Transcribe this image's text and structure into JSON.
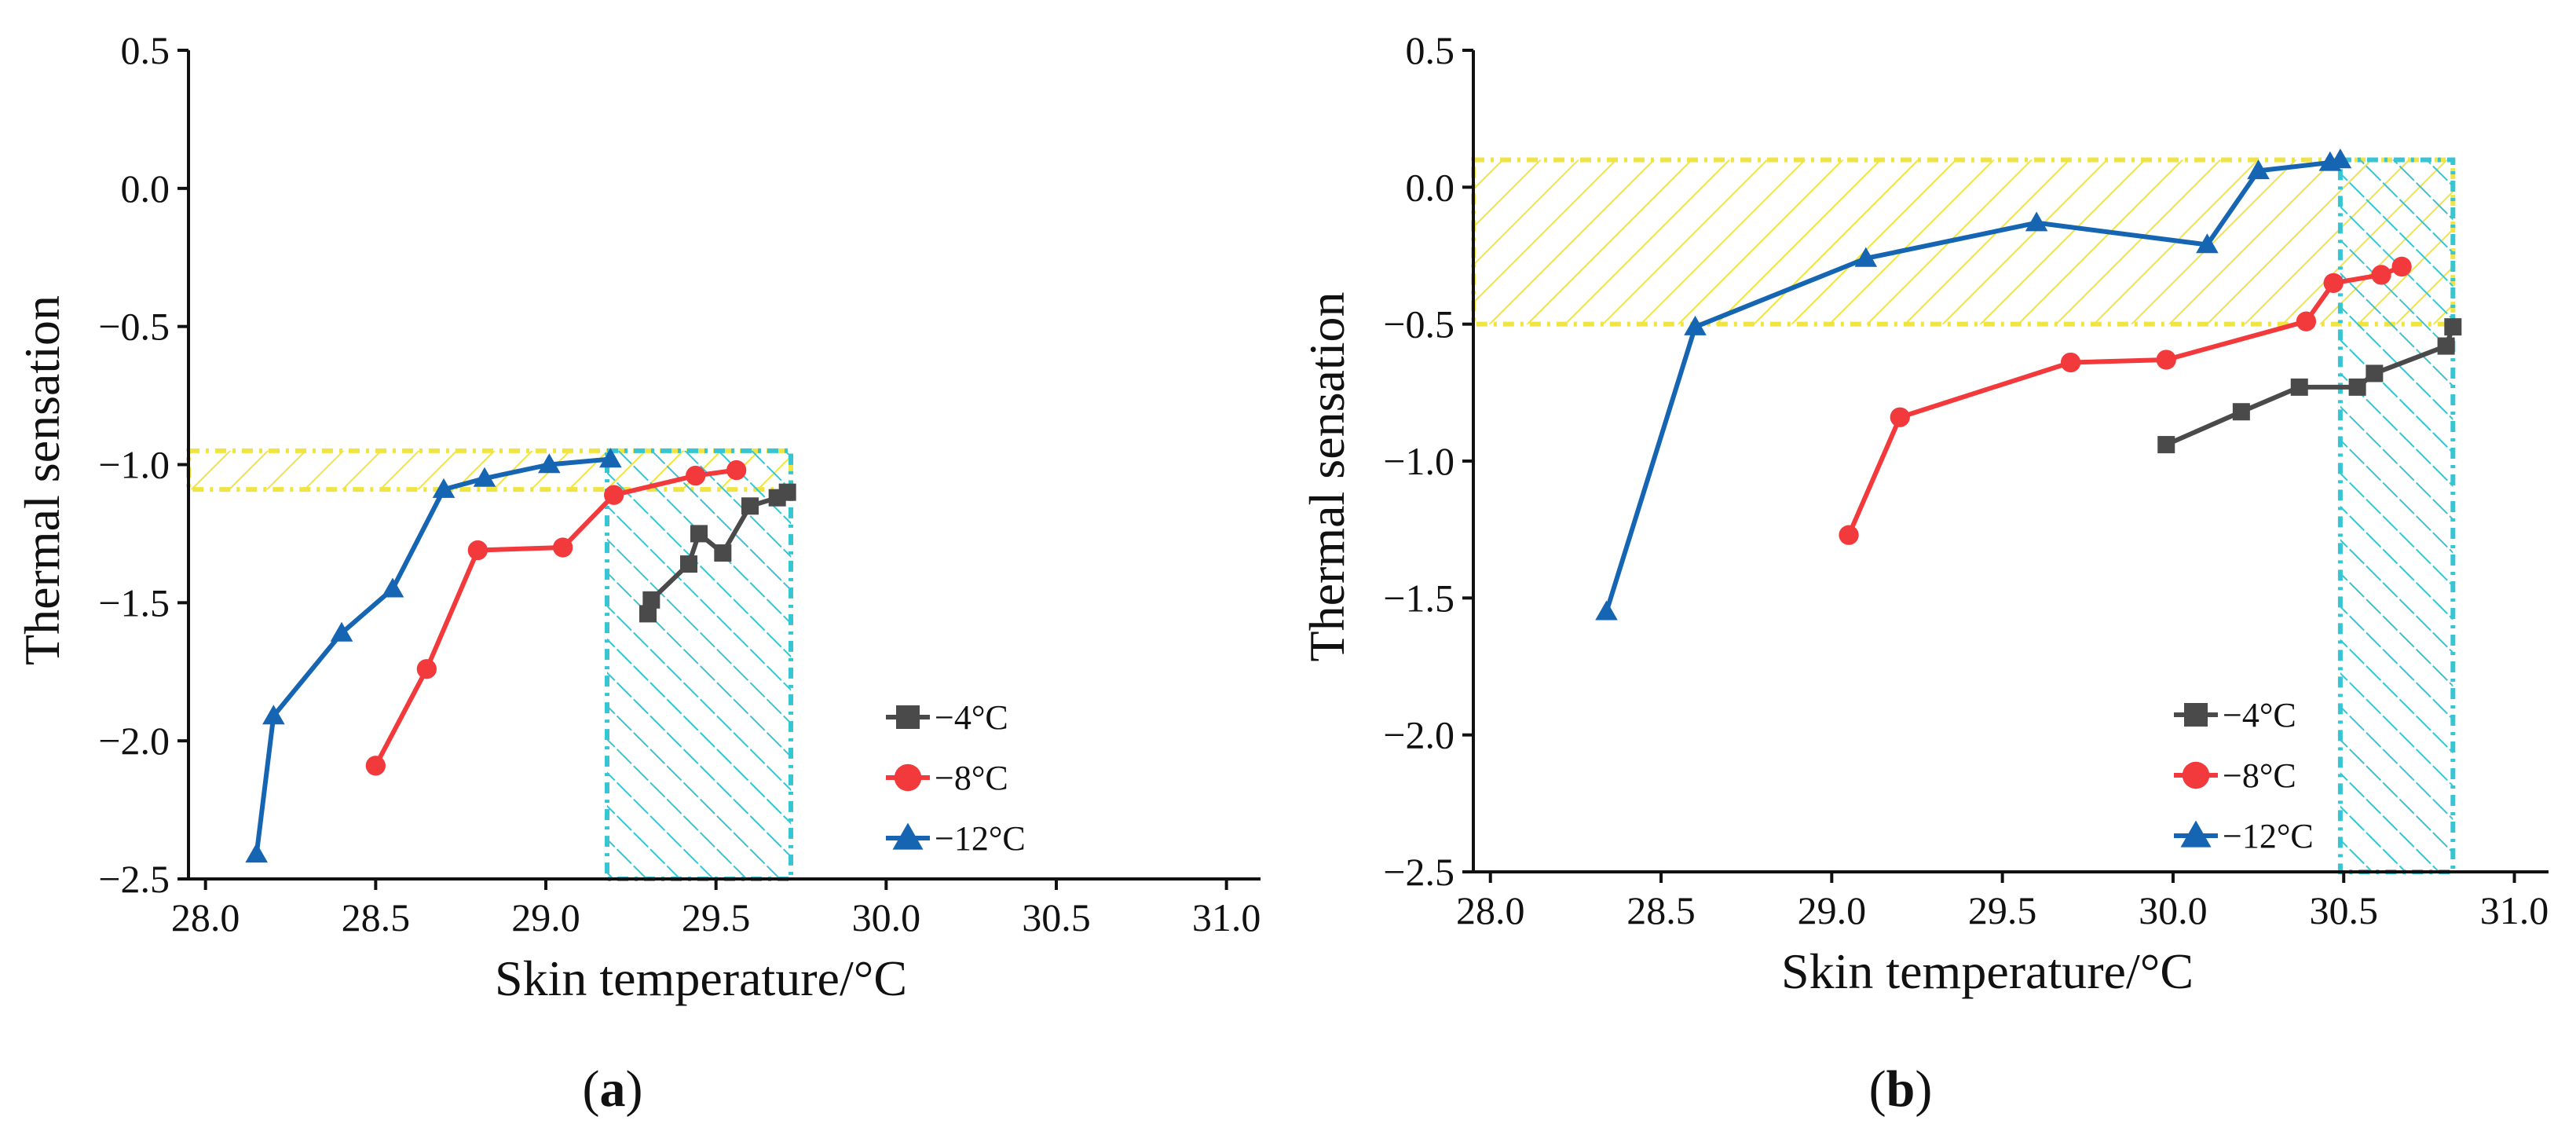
{
  "figure": {
    "labels": {
      "a": "a",
      "b": "b"
    }
  },
  "colors": {
    "series_-4": "#4a4a4a",
    "series_-8": "#f2393b",
    "series_-12": "#1565b3",
    "yellow_hatch": "#f0e442",
    "cyan_hatch": "#36c5d3"
  },
  "chart_data": [
    {
      "id": "a",
      "type": "line",
      "xlabel": "Skin temperature/°C",
      "ylabel": "Thermal sensation",
      "xlim": [
        27.95,
        31.1
      ],
      "ylim": [
        -2.5,
        0.5
      ],
      "xticks": [
        "28.0",
        "28.5",
        "29.0",
        "29.5",
        "30.0",
        "30.5",
        "31.0"
      ],
      "yticks": [
        "0.5",
        "0.0",
        "−0.5",
        "−1.0",
        "−1.5",
        "−2.0",
        "−2.5"
      ],
      "legend": "lower-right",
      "series": [
        {
          "name": "−4°C",
          "marker": "square",
          "x": [
            29.3,
            29.31,
            29.42,
            29.45,
            29.52,
            29.6,
            29.68,
            29.71
          ],
          "y": [
            -1.54,
            -1.49,
            -1.36,
            -1.25,
            -1.32,
            -1.15,
            -1.12,
            -1.1
          ]
        },
        {
          "name": "−8°C",
          "marker": "circle",
          "x": [
            28.5,
            28.65,
            28.8,
            29.05,
            29.2,
            29.44,
            29.56
          ],
          "y": [
            -2.09,
            -1.74,
            -1.31,
            -1.3,
            -1.11,
            -1.04,
            -1.02
          ]
        },
        {
          "name": "−12°C",
          "marker": "triangle",
          "x": [
            28.15,
            28.2,
            28.4,
            28.55,
            28.7,
            28.82,
            29.01,
            29.19
          ],
          "y": [
            -2.41,
            -1.91,
            -1.61,
            -1.45,
            -1.09,
            -1.05,
            -1.0,
            -0.98
          ]
        }
      ],
      "shaded_regions": [
        {
          "type": "horizontal-band",
          "style": "yellow",
          "x_range": [
            27.95,
            29.72
          ],
          "y_range": [
            -1.09,
            -0.95
          ]
        },
        {
          "type": "vertical-band",
          "style": "cyan",
          "x_range": [
            29.18,
            29.72
          ],
          "y_range": [
            -2.5,
            -0.95
          ]
        }
      ]
    },
    {
      "id": "b",
      "type": "line",
      "xlabel": "Skin temperature/°C",
      "ylabel": "Thermal sensation",
      "xlim": [
        27.95,
        31.1
      ],
      "ylim": [
        -2.5,
        0.5
      ],
      "xticks": [
        "28.0",
        "28.5",
        "29.0",
        "29.5",
        "30.0",
        "30.5",
        "31.0"
      ],
      "yticks": [
        "0.5",
        "0.0",
        "−0.5",
        "−1.0",
        "−1.5",
        "−2.0",
        "−2.5"
      ],
      "legend": "lower-right",
      "series": [
        {
          "name": "−4°C",
          "marker": "square",
          "x": [
            29.98,
            30.2,
            30.37,
            30.54,
            30.59,
            30.8,
            30.82
          ],
          "y": [
            -0.94,
            -0.82,
            -0.73,
            -0.73,
            -0.68,
            -0.58,
            -0.51
          ]
        },
        {
          "name": "−8°C",
          "marker": "circle",
          "x": [
            29.05,
            29.2,
            29.7,
            29.98,
            30.39,
            30.47,
            30.61,
            30.67
          ],
          "y": [
            -1.27,
            -0.84,
            -0.64,
            -0.63,
            -0.49,
            -0.35,
            -0.32,
            -0.29
          ]
        },
        {
          "name": "−12°C",
          "marker": "triangle",
          "x": [
            28.34,
            28.6,
            29.1,
            29.6,
            30.1,
            30.25,
            30.46,
            30.49
          ],
          "y": [
            -1.55,
            -0.51,
            -0.26,
            -0.13,
            -0.21,
            0.06,
            0.09,
            0.1
          ]
        }
      ],
      "shaded_regions": [
        {
          "type": "horizontal-band",
          "style": "yellow",
          "x_range": [
            27.95,
            30.82
          ],
          "y_range": [
            -0.5,
            0.1
          ]
        },
        {
          "type": "vertical-band",
          "style": "cyan",
          "x_range": [
            30.49,
            30.82
          ],
          "y_range": [
            -2.5,
            0.1
          ]
        }
      ]
    }
  ]
}
